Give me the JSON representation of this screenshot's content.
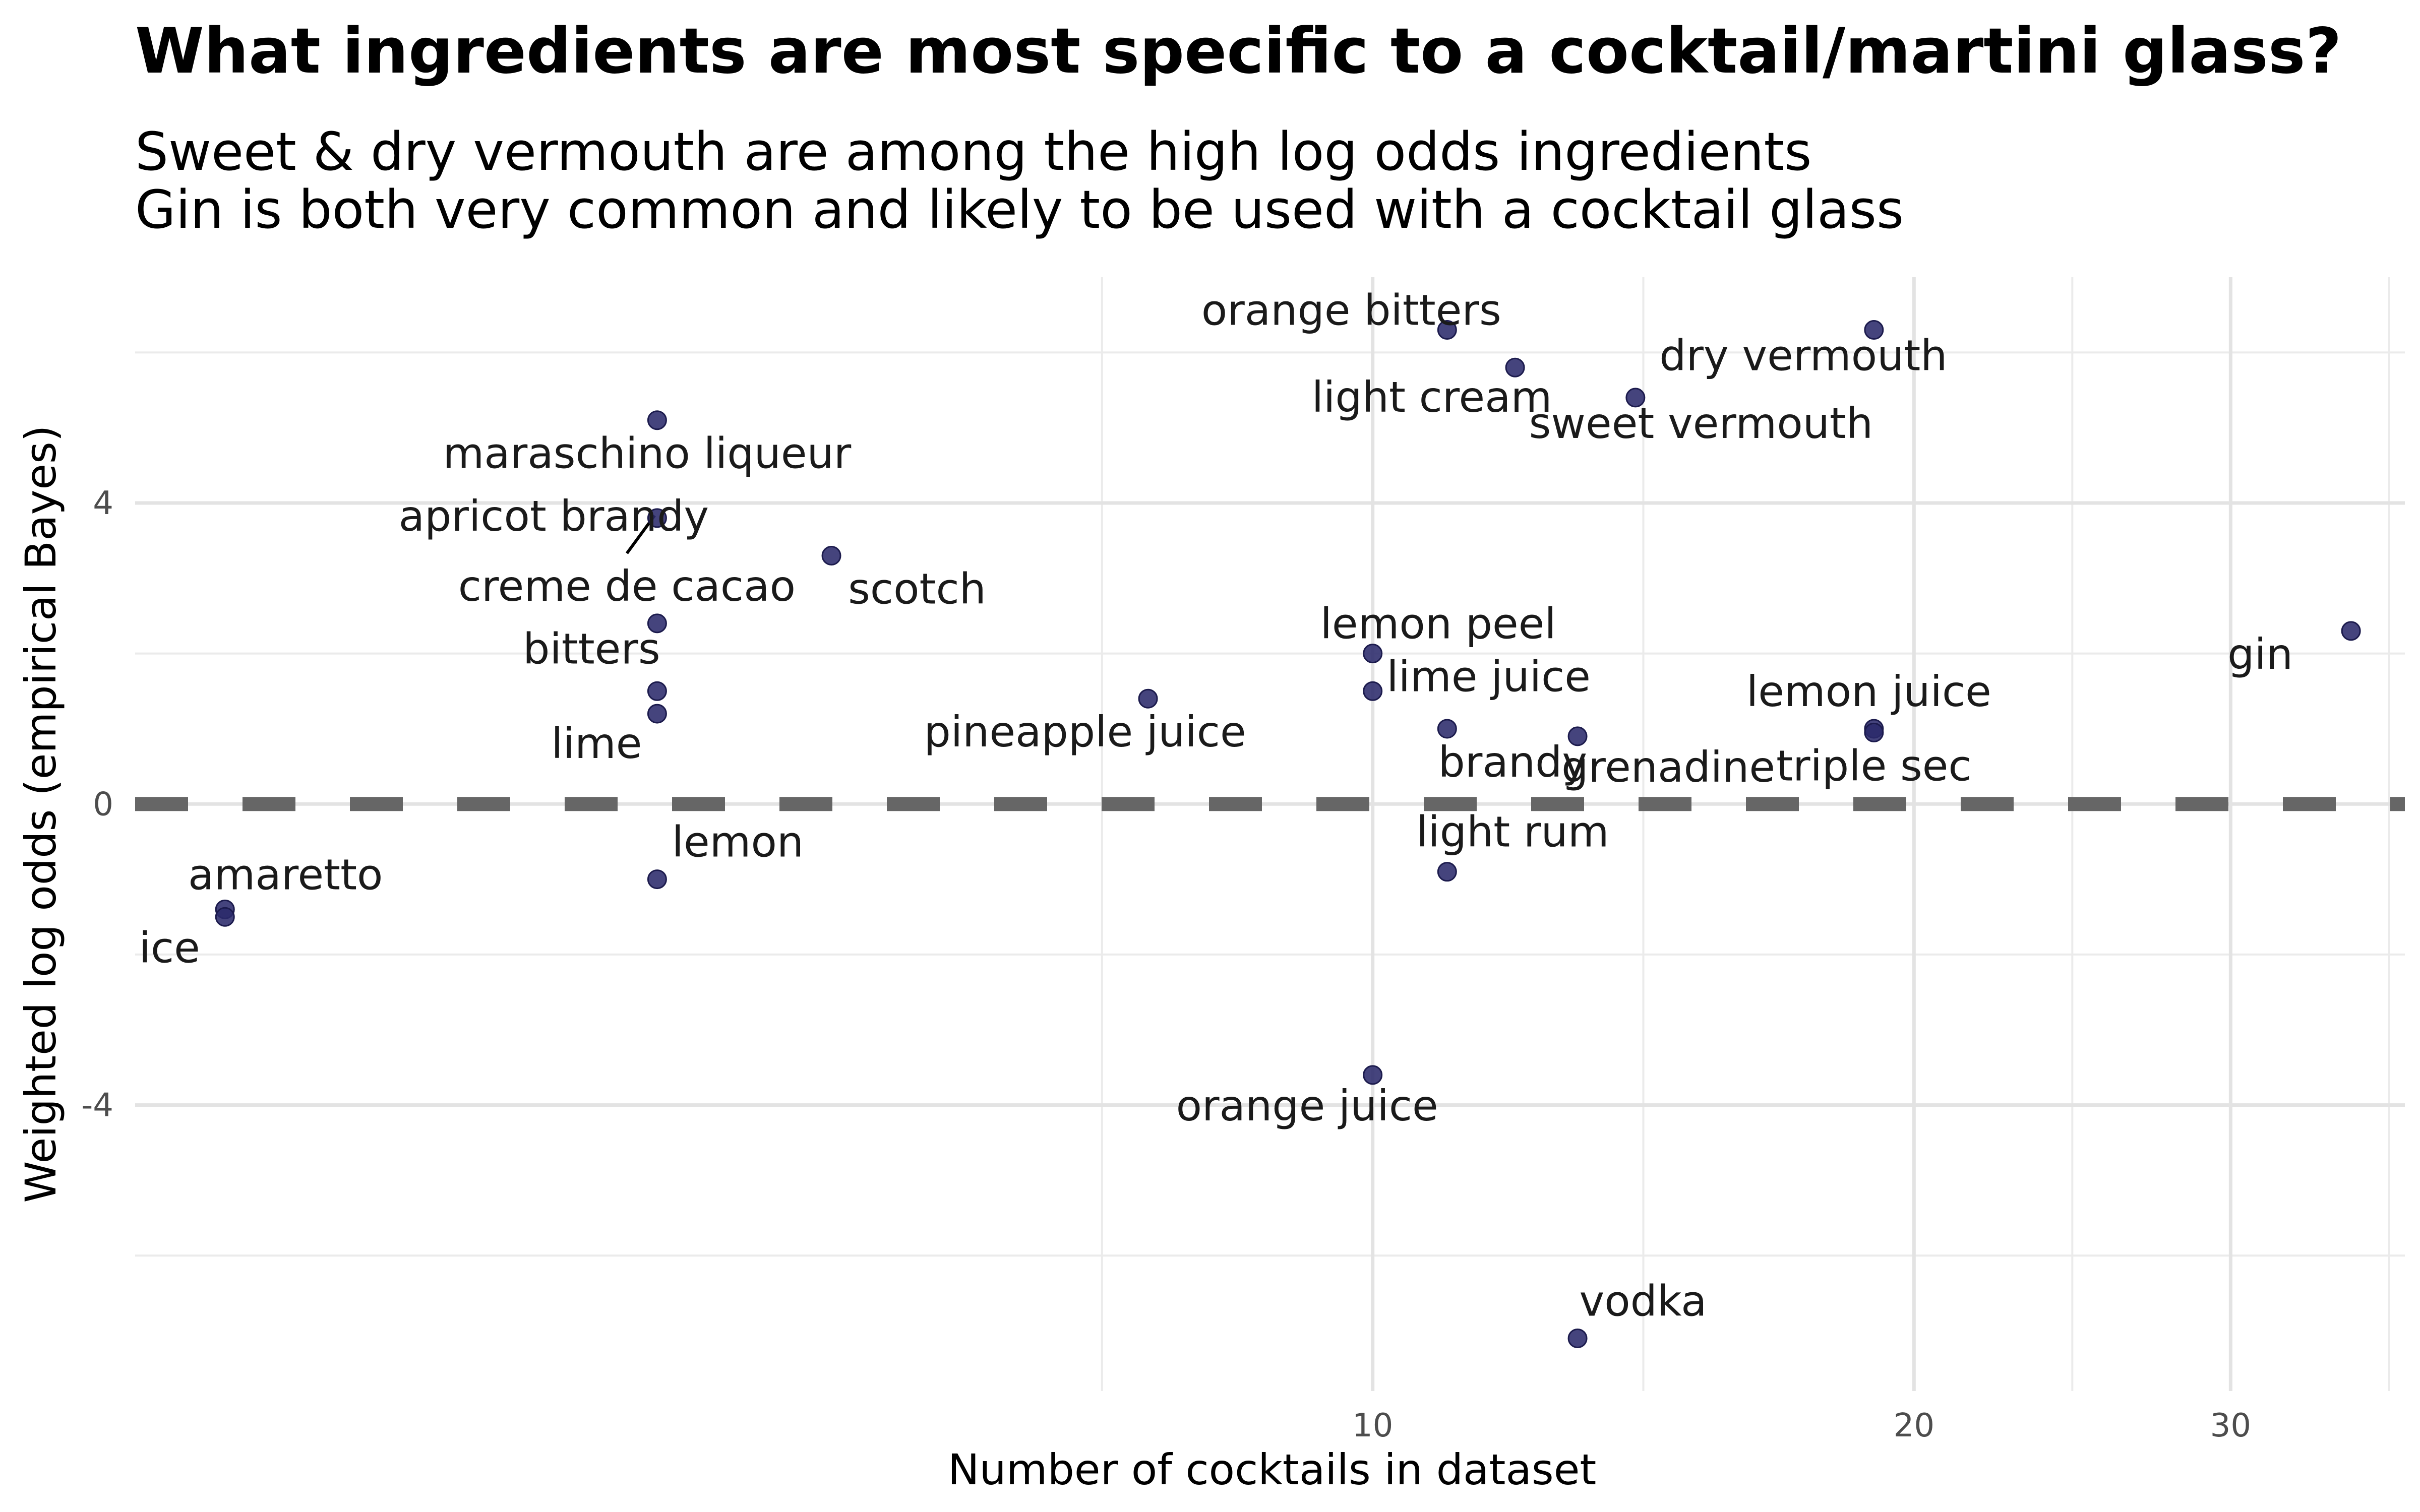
{
  "title": "What ingredients are most specific to a cocktail/martini glass?",
  "subtitle": [
    "Sweet & dry vermouth are among the high log odds ingredients",
    "Gin is both very common and likely to be used with a cocktail glass"
  ],
  "chart_data": {
    "type": "scatter",
    "title": "What ingredients are most specific to a cocktail/martini glass?",
    "subtitle": "Sweet & dry vermouth are among the high log odds ingredients\nGin is both very common and likely to be used with a cocktail glass",
    "xlabel": "Number of cocktails in dataset",
    "ylabel": "Weighted log odds (empirical Bayes)",
    "x_scale": "log",
    "xlim": [
      2.05,
      37.5
    ],
    "ylim": [
      -7.8,
      7.0
    ],
    "x_ticks": [
      10,
      20,
      30
    ],
    "y_ticks": [
      -4,
      0,
      4
    ],
    "grid": true,
    "reference_line": {
      "y": 0,
      "style": "dashed",
      "color": "#666666"
    },
    "point_color": "#2b2a6b",
    "points": [
      {
        "label": "orange bitters",
        "x": 11,
        "y": 6.3,
        "lx": -190,
        "ly": -10
      },
      {
        "label": "dry vermouth",
        "x": 19,
        "y": 6.3,
        "lx": -140,
        "ly": 80
      },
      {
        "label": "light cream",
        "x": 12,
        "y": 5.8,
        "lx": -165,
        "ly": 88
      },
      {
        "label": "sweet vermouth",
        "x": 14,
        "y": 5.4,
        "lx": 130,
        "ly": 80
      },
      {
        "label": "maraschino liqueur",
        "x": 4,
        "y": 5.1,
        "lx": -20,
        "ly": 95
      },
      {
        "label": "apricot brandy",
        "x": 4,
        "y": 3.8,
        "lx": -205,
        "ly": 25
      },
      {
        "label": "scotch",
        "x": 5,
        "y": 3.3,
        "lx": 170,
        "ly": 95
      },
      {
        "label": "creme de cacao",
        "x": 4,
        "y": 2.4,
        "lx": -60,
        "ly": -45
      },
      {
        "label": "lemon peel",
        "x": 10,
        "y": 2.0,
        "lx": 130,
        "ly": -30
      },
      {
        "label": "gin",
        "x": 35,
        "y": 2.3,
        "lx": -180,
        "ly": 75
      },
      {
        "label": "bitters",
        "x": 4,
        "y": 1.5,
        "lx": -130,
        "ly": -55
      },
      {
        "label": "lime juice",
        "x": 10,
        "y": 1.5,
        "lx": 230,
        "ly": 0
      },
      {
        "label": "pineapple juice",
        "x": 7.5,
        "y": 1.4,
        "lx": -125,
        "ly": 95
      },
      {
        "label": "lime",
        "x": 4,
        "y": 1.2,
        "lx": -120,
        "ly": 88
      },
      {
        "label": "brandy",
        "x": 11,
        "y": 1.0,
        "lx": 130,
        "ly": 95
      },
      {
        "label": "grenadine",
        "x": 13,
        "y": 0.9,
        "lx": 180,
        "ly": 90
      },
      {
        "label": "lemon juice",
        "x": 19,
        "y": 1.0,
        "lx": -10,
        "ly": -45
      },
      {
        "label": "triple sec",
        "x": 19,
        "y": 0.95,
        "lx": 0,
        "ly": 95
      },
      {
        "label": "light rum",
        "x": 11,
        "y": -0.9,
        "lx": 130,
        "ly": -50
      },
      {
        "label": "lemon",
        "x": 4,
        "y": -1.0,
        "lx": 160,
        "ly": -45
      },
      {
        "label": "amaretto",
        "x": 2.3,
        "y": -1.4,
        "lx": 120,
        "ly": -40
      },
      {
        "label": "ice",
        "x": 2.3,
        "y": -1.5,
        "lx": -110,
        "ly": 90
      },
      {
        "label": "orange juice",
        "x": 10,
        "y": -3.6,
        "lx": -130,
        "ly": 90
      },
      {
        "label": "vodka",
        "x": 13,
        "y": -7.1,
        "lx": 130,
        "ly": -45
      }
    ],
    "leader_lines": [
      {
        "label": "creme de cacao",
        "x": 4,
        "y": 3.8
      }
    ]
  }
}
